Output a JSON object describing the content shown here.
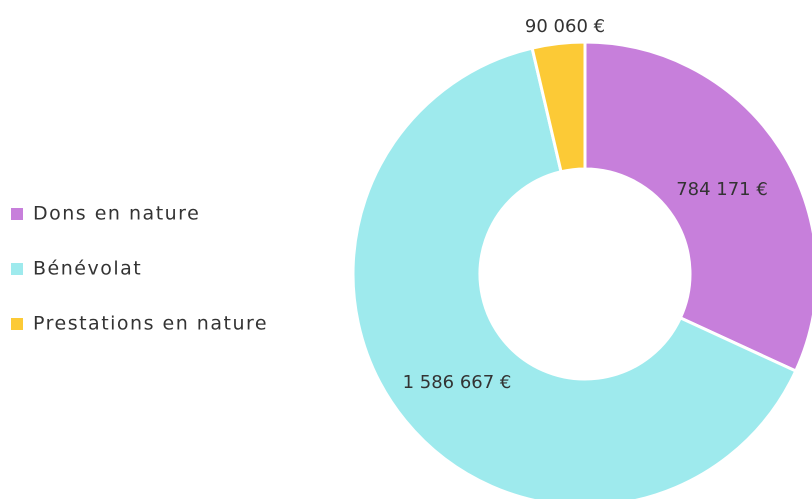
{
  "chart_data": {
    "type": "donut",
    "categories": [
      "Dons en nature",
      "Bénévolat",
      "Prestations en nature"
    ],
    "values": [
      784171,
      1586667,
      90060
    ],
    "value_labels": [
      "784 171 €",
      "1 586 667 €",
      "90 060 €"
    ],
    "colors": [
      "#c77fdb",
      "#9eeaed",
      "#fcca36"
    ],
    "legend": "left"
  }
}
